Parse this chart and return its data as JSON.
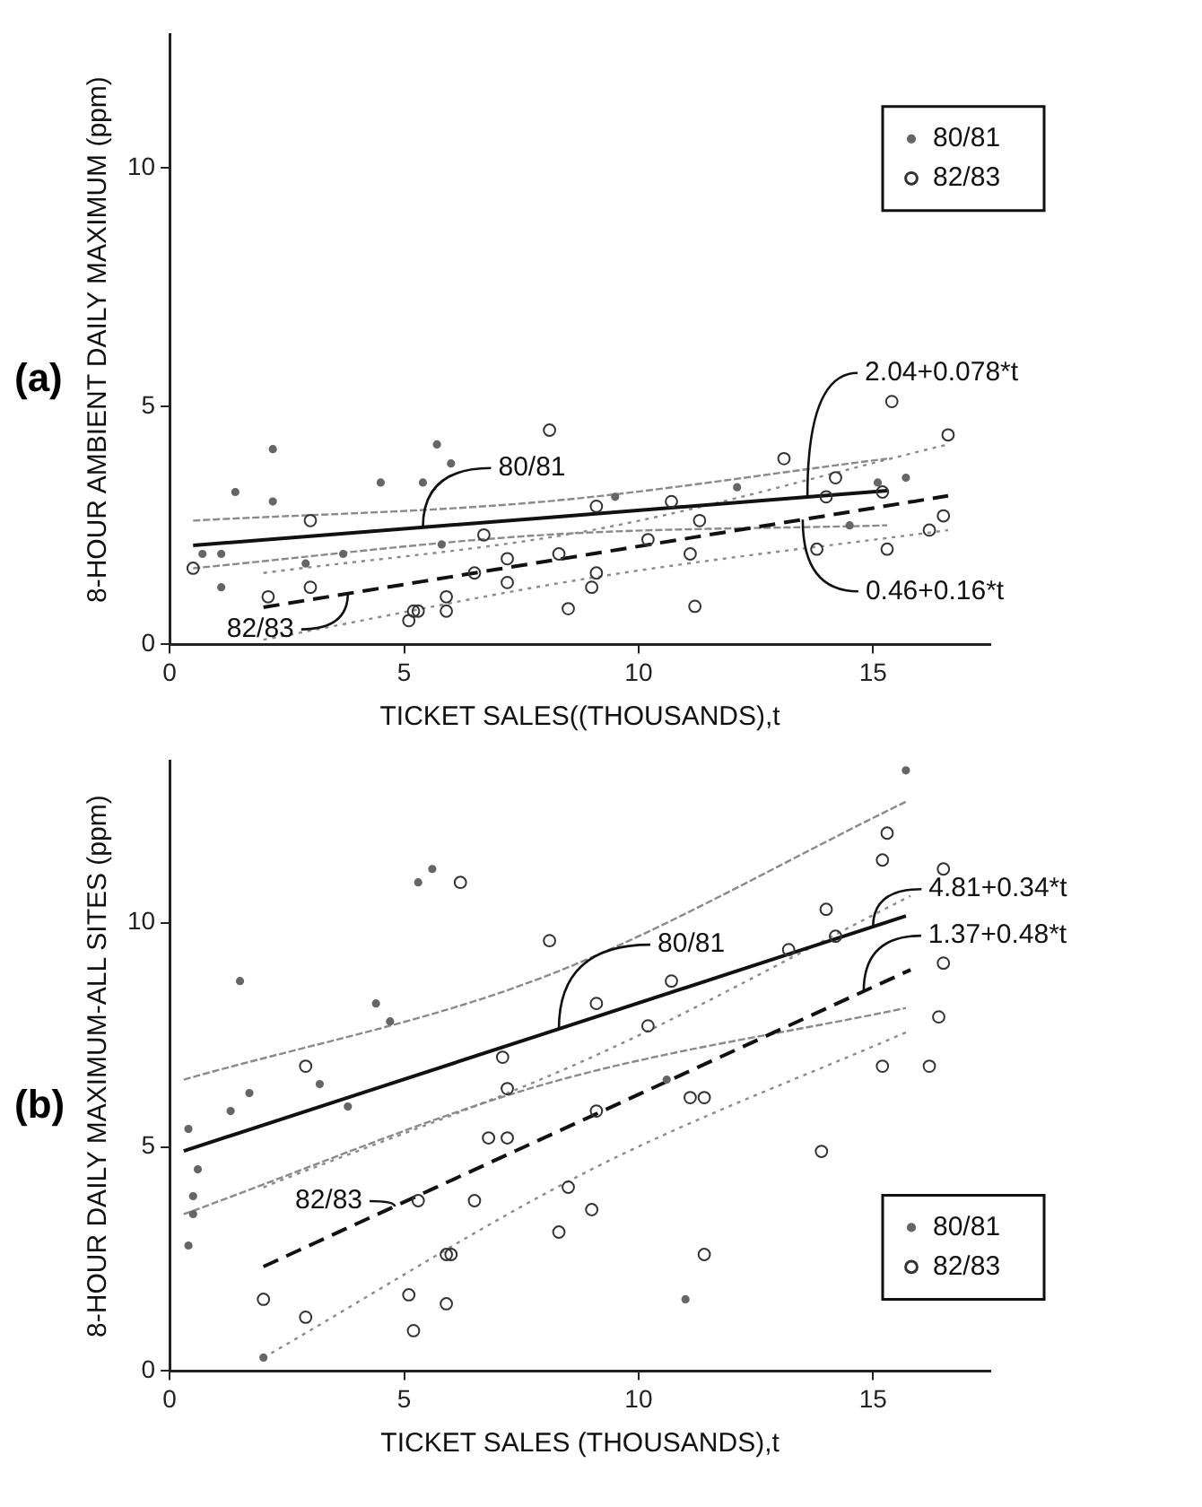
{
  "chart_data": [
    {
      "type": "scatter",
      "title": "(a)",
      "xlabel": "TICKET SALES((THOUSANDS),t",
      "ylabel": "8-HOUR AMBIENT DAILY MAXIMUM (ppm)",
      "xlim": [
        0,
        17.5
      ],
      "xticks": [
        0,
        5,
        10,
        15
      ],
      "ylim": [
        0,
        12.8
      ],
      "yticks": [
        0,
        5,
        10
      ],
      "grid": false,
      "legend": "top right",
      "series": [
        {
          "name": "80/81",
          "type": "scatter",
          "marker": "circle",
          "color": "#666666",
          "x": [
            1.4,
            2.2,
            2.2,
            4.5,
            5.4,
            5.7,
            6.0,
            5.8,
            1.1,
            0.7,
            1.1,
            3.7,
            2.9,
            12.1,
            15.7,
            15.1,
            9.5,
            14.5
          ],
          "values": [
            3.2,
            4.1,
            3.0,
            3.4,
            3.4,
            4.2,
            3.8,
            2.1,
            1.2,
            1.9,
            1.9,
            1.9,
            1.7,
            3.3,
            3.5,
            3.4,
            3.1,
            2.5
          ]
        },
        {
          "name": "82/83",
          "type": "scatter",
          "marker": "circle",
          "color": "#333333",
          "x": [
            3.0,
            3.0,
            6.7,
            8.1,
            7.2,
            7.2,
            8.3,
            8.5,
            9.0,
            9.1,
            9.1,
            10.2,
            10.7,
            11.1,
            11.2,
            11.3,
            13.1,
            13.8,
            14.0,
            14.2,
            15.2,
            15.3,
            15.4,
            16.2,
            16.5,
            16.6,
            2.1,
            5.2,
            5.3,
            5.1,
            5.9,
            5.9,
            0.5,
            6.5
          ],
          "values": [
            2.6,
            1.2,
            2.3,
            4.5,
            1.8,
            1.3,
            1.9,
            0.75,
            1.2,
            1.5,
            2.9,
            2.2,
            3.0,
            1.9,
            0.8,
            2.6,
            3.9,
            2.0,
            3.1,
            3.5,
            3.2,
            2.0,
            5.1,
            2.4,
            2.7,
            4.4,
            1.0,
            0.7,
            0.7,
            0.5,
            0.7,
            1.0,
            1.6,
            1.5
          ]
        },
        {
          "type": "line",
          "marker": "none",
          "color": "#111111",
          "line_style": "solid",
          "x": [
            0.5,
            8,
            15.3
          ],
          "values": [
            2.08,
            2.66,
            3.23
          ]
        },
        {
          "type": "line",
          "marker": "none",
          "color": "#111111",
          "line_style": "dashed",
          "x": [
            2,
            9,
            16.6
          ],
          "values": [
            0.78,
            1.9,
            3.12
          ]
        },
        {
          "type": "line",
          "marker": "none",
          "color": "#8a8a8a",
          "line_style": "dashed",
          "x": [
            0.5,
            8,
            15.3
          ],
          "values": [
            1.6,
            2.3,
            2.5
          ]
        },
        {
          "type": "line",
          "marker": "none",
          "color": "#8a8a8a",
          "line_style": "dashed",
          "x": [
            0.5,
            8,
            15.3
          ],
          "values": [
            2.6,
            3.0,
            3.9
          ]
        },
        {
          "type": "line",
          "marker": "none",
          "color": "#8a8a8a",
          "line_style": "dotted",
          "x": [
            2,
            9,
            16.6
          ],
          "values": [
            0.1,
            1.4,
            2.4
          ]
        },
        {
          "type": "line",
          "marker": "none",
          "color": "#8a8a8a",
          "line_style": "dotted",
          "x": [
            2,
            9,
            16.6
          ],
          "values": [
            1.5,
            2.4,
            4.2
          ]
        }
      ],
      "annotations": [
        {
          "text": "80/81",
          "x": 5.4,
          "y": 2.46
        },
        {
          "text": "82/83",
          "x": 3.8,
          "y": 1.07
        },
        {
          "text": "2.04+0.078*t",
          "x": 13.6,
          "y": 3.1
        },
        {
          "text": "0.46+0.16*t",
          "x": 13.5,
          "y": 2.62
        }
      ]
    },
    {
      "type": "scatter",
      "title": "(b)",
      "xlabel": "TICKET SALES (THOUSANDS),t",
      "ylabel": "8-HOUR DAILY MAXIMUM-ALL SITES (ppm)",
      "xlim": [
        0,
        17.5
      ],
      "xticks": [
        0,
        5,
        10,
        15
      ],
      "ylim": [
        0,
        13.6
      ],
      "yticks": [
        0,
        5,
        10
      ],
      "grid": false,
      "legend": "bottom right",
      "series": [
        {
          "name": "80/81",
          "type": "scatter",
          "marker": "circle",
          "color": "#666666",
          "x": [
            5.6,
            5.3,
            1.5,
            4.4,
            4.7,
            3.2,
            3.8,
            1.7,
            1.3,
            0.4,
            0.6,
            0.5,
            0.5,
            0.4,
            10.6,
            11.0,
            2.0,
            15.7
          ],
          "values": [
            11.2,
            10.9,
            8.7,
            8.2,
            7.8,
            6.4,
            5.9,
            6.2,
            5.8,
            5.4,
            4.5,
            3.9,
            3.5,
            2.8,
            6.5,
            1.6,
            0.3,
            13.4
          ]
        },
        {
          "name": "82/83",
          "type": "scatter",
          "marker": "circle",
          "color": "#333333",
          "x": [
            6.2,
            2.9,
            8.1,
            7.1,
            7.2,
            6.8,
            7.2,
            9.1,
            9.1,
            10.2,
            10.7,
            13.2,
            14.0,
            14.2,
            15.2,
            11.1,
            11.4,
            13.9,
            11.4,
            8.5,
            9.0,
            8.3,
            6.5,
            5.3,
            5.9,
            6.0,
            5.1,
            5.9,
            5.2,
            2.0,
            2.9,
            15.3,
            16.5,
            16.5,
            16.4,
            15.2,
            16.2
          ],
          "values": [
            10.9,
            6.8,
            9.6,
            7.0,
            6.3,
            5.2,
            5.2,
            5.8,
            8.2,
            7.7,
            8.7,
            9.4,
            10.3,
            9.7,
            11.4,
            6.1,
            6.1,
            4.9,
            2.6,
            4.1,
            3.6,
            3.1,
            3.8,
            3.8,
            2.6,
            2.6,
            1.7,
            1.5,
            0.9,
            1.6,
            1.2,
            12.0,
            11.2,
            9.1,
            7.9,
            6.8,
            6.8
          ]
        },
        {
          "type": "line",
          "marker": "none",
          "color": "#111111",
          "line_style": "solid",
          "x": [
            0.3,
            8,
            15.7
          ],
          "values": [
            4.91,
            7.53,
            10.15
          ]
        },
        {
          "type": "line",
          "marker": "none",
          "color": "#111111",
          "line_style": "dashed",
          "x": [
            2,
            9,
            15.8
          ],
          "values": [
            2.33,
            5.69,
            8.95
          ]
        },
        {
          "type": "line",
          "marker": "none",
          "color": "#8a8a8a",
          "line_style": "dashed",
          "x": [
            0.3,
            8,
            15.7
          ],
          "values": [
            3.5,
            6.4,
            8.1
          ]
        },
        {
          "type": "line",
          "marker": "none",
          "color": "#8a8a8a",
          "line_style": "dashed",
          "x": [
            0.3,
            8,
            15.7
          ],
          "values": [
            6.5,
            8.8,
            12.7
          ]
        },
        {
          "type": "line",
          "marker": "none",
          "color": "#8a8a8a",
          "line_style": "dotted",
          "x": [
            2,
            9,
            15.8
          ],
          "values": [
            0.3,
            4.5,
            7.6
          ]
        },
        {
          "type": "line",
          "marker": "none",
          "color": "#8a8a8a",
          "line_style": "dotted",
          "x": [
            2,
            9,
            15.8
          ],
          "values": [
            4.1,
            7.0,
            10.6
          ]
        }
      ],
      "annotations": [
        {
          "text": "80/81",
          "x": 8.3,
          "y": 7.63
        },
        {
          "text": "82/83",
          "x": 4.8,
          "y": 3.67
        },
        {
          "text": "4.81+0.34*t",
          "x": 15.0,
          "y": 9.91
        },
        {
          "text": "1.37+0.48*t",
          "x": 14.8,
          "y": 8.47
        }
      ]
    }
  ]
}
